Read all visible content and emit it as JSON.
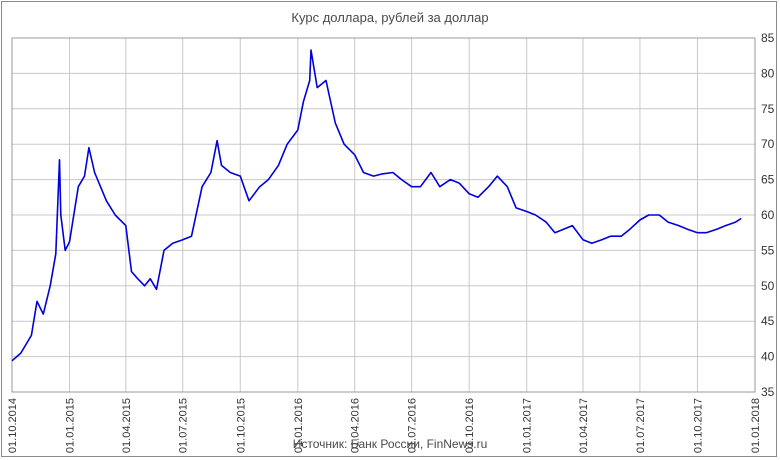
{
  "chart_data": {
    "type": "line",
    "title": "Курс доллара,  рублей  за доллар",
    "source": "Источник: Банк России, FinNews.ru",
    "ylim": [
      35,
      85
    ],
    "y_ticks": [
      "35",
      "40",
      "45",
      "50",
      "55",
      "60",
      "65",
      "70",
      "75",
      "80",
      "85"
    ],
    "x_ticks": [
      "01.10.2014",
      "01.01.2015",
      "01.04.2015",
      "01.07.2015",
      "01.10.2015",
      "01.01.2016",
      "01.04.2016",
      "01.07.2016",
      "01.10.2016",
      "01.01.2017",
      "01.04.2017",
      "01.07.2017",
      "01.10.2017",
      "01.01.2018"
    ],
    "grid": true,
    "series": [
      {
        "color": "#0000dd",
        "x": [
          "01.10.2014",
          "15.10.2014",
          "01.11.2014",
          "10.11.2014",
          "20.11.2014",
          "01.12.2014",
          "10.12.2014",
          "16.12.2014",
          "18.12.2014",
          "25.12.2014",
          "01.01.2015",
          "15.01.2015",
          "25.01.2015",
          "01.02.2015",
          "10.02.2015",
          "01.03.2015",
          "15.03.2015",
          "01.04.2015",
          "10.04.2015",
          "20.04.2015",
          "01.05.2015",
          "10.05.2015",
          "20.05.2015",
          "01.06.2015",
          "15.06.2015",
          "01.07.2015",
          "15.07.2015",
          "01.08.2015",
          "15.08.2015",
          "25.08.2015",
          "01.09.2015",
          "15.09.2015",
          "01.10.2015",
          "15.10.2015",
          "01.11.2015",
          "15.11.2015",
          "01.12.2015",
          "15.12.2015",
          "01.01.2016",
          "10.01.2016",
          "20.01.2016",
          "22.01.2016",
          "01.02.2016",
          "15.02.2016",
          "01.03.2016",
          "15.03.2016",
          "01.04.2016",
          "15.04.2016",
          "01.05.2016",
          "15.05.2016",
          "01.06.2016",
          "15.06.2016",
          "01.07.2016",
          "15.07.2016",
          "01.08.2016",
          "15.08.2016",
          "01.09.2016",
          "15.09.2016",
          "01.10.2016",
          "15.10.2016",
          "01.11.2016",
          "15.11.2016",
          "01.12.2016",
          "15.12.2016",
          "01.01.2017",
          "15.01.2017",
          "01.02.2017",
          "15.02.2017",
          "01.03.2017",
          "15.03.2017",
          "01.04.2017",
          "15.04.2017",
          "01.05.2017",
          "15.05.2017",
          "01.06.2017",
          "15.06.2017",
          "01.07.2017",
          "15.07.2017",
          "01.08.2017",
          "15.08.2017",
          "01.09.2017",
          "15.09.2017",
          "01.10.2017",
          "15.10.2017",
          "01.11.2017",
          "15.11.2017",
          "01.12.2017",
          "10.12.2017"
        ],
        "values": [
          39.4,
          40.5,
          43.0,
          47.8,
          46.0,
          50.0,
          54.5,
          67.8,
          60.0,
          55.0,
          56.2,
          64.0,
          65.5,
          69.5,
          66.0,
          62.0,
          60.0,
          58.5,
          52.0,
          51.0,
          50.0,
          51.0,
          49.5,
          55.0,
          56.0,
          56.5,
          57.0,
          64.0,
          66.0,
          70.5,
          67.0,
          66.0,
          65.5,
          62.0,
          64.0,
          65.0,
          67.0,
          70.0,
          72.0,
          76.0,
          79.0,
          83.3,
          78.0,
          79.0,
          73.0,
          70.0,
          68.5,
          66.0,
          65.5,
          65.8,
          66.0,
          65.0,
          64.0,
          64.0,
          66.0,
          64.0,
          65.0,
          64.5,
          63.0,
          62.5,
          64.0,
          65.5,
          64.0,
          61.0,
          60.5,
          60.0,
          59.0,
          57.5,
          58.0,
          58.5,
          56.5,
          56.0,
          56.5,
          57.0,
          57.0,
          58.0,
          59.3,
          60.0,
          60.0,
          59.0,
          58.5,
          58.0,
          57.5,
          57.5,
          58.0,
          58.5,
          59.0,
          59.5
        ]
      }
    ]
  }
}
